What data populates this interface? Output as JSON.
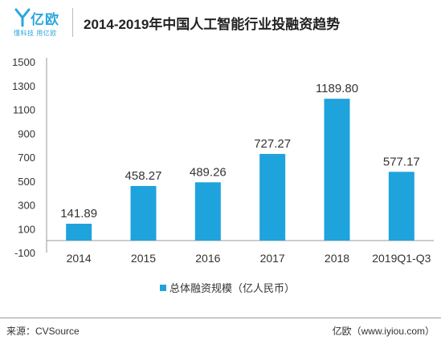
{
  "header": {
    "logo_text": "亿欧",
    "logo_slogan": "懂科技 用亿欧",
    "title": "2014-2019年中国人工智能行业投融资趋势"
  },
  "chart_data": {
    "type": "bar",
    "categories": [
      "2014",
      "2015",
      "2016",
      "2017",
      "2018",
      "2019Q1-Q3"
    ],
    "series": [
      {
        "name": "总体融资规模（亿人民币）",
        "values": [
          141.89,
          458.27,
          489.26,
          727.27,
          1189.8,
          577.17
        ]
      }
    ],
    "value_labels": [
      "141.89",
      "458.27",
      "489.26",
      "727.27",
      "1189.80",
      "577.17"
    ],
    "y_ticks": [
      "1500",
      "1300",
      "1100",
      "900",
      "700",
      "500",
      "300",
      "100",
      "-100"
    ],
    "ylim": [
      -100,
      1500
    ],
    "grid": false,
    "legend_position": "bottom",
    "bar_color": "#1ea3dc"
  },
  "footer": {
    "source": "来源：CVSource",
    "credit": "亿欧（www.iyiou.com）"
  }
}
